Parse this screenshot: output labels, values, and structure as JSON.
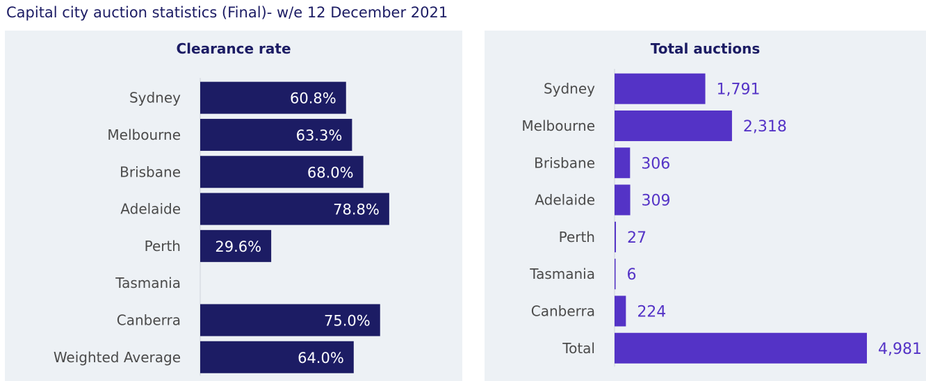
{
  "title": "Capital city auction statistics (Final)- w/e 12 December 2021",
  "chart_data": [
    {
      "type": "bar",
      "orientation": "horizontal",
      "title": "Clearance rate",
      "categories": [
        "Sydney",
        "Melbourne",
        "Brisbane",
        "Adelaide",
        "Perth",
        "Tasmania",
        "Canberra",
        "Weighted Average"
      ],
      "values": [
        60.8,
        63.3,
        68.0,
        78.8,
        29.6,
        null,
        75.0,
        64.0
      ],
      "labels": [
        "60.8%",
        "63.3%",
        "68.0%",
        "78.8%",
        "29.6%",
        "",
        "75.0%",
        "64.0%"
      ],
      "xlim": [
        0,
        100
      ],
      "color": "#1c1c64",
      "label_position": "inside-end",
      "grid": false
    },
    {
      "type": "bar",
      "orientation": "horizontal",
      "title": "Total auctions",
      "categories": [
        "Sydney",
        "Melbourne",
        "Brisbane",
        "Adelaide",
        "Perth",
        "Tasmania",
        "Canberra",
        "Total"
      ],
      "values": [
        1791,
        2318,
        306,
        309,
        27,
        6,
        224,
        4981
      ],
      "labels": [
        "1,791",
        "2,318",
        "306",
        "309",
        "27",
        "6",
        "224",
        "4,981"
      ],
      "xlim": [
        0,
        4981
      ],
      "color": "#5433c6",
      "label_position": "outside-end",
      "grid": false
    }
  ]
}
